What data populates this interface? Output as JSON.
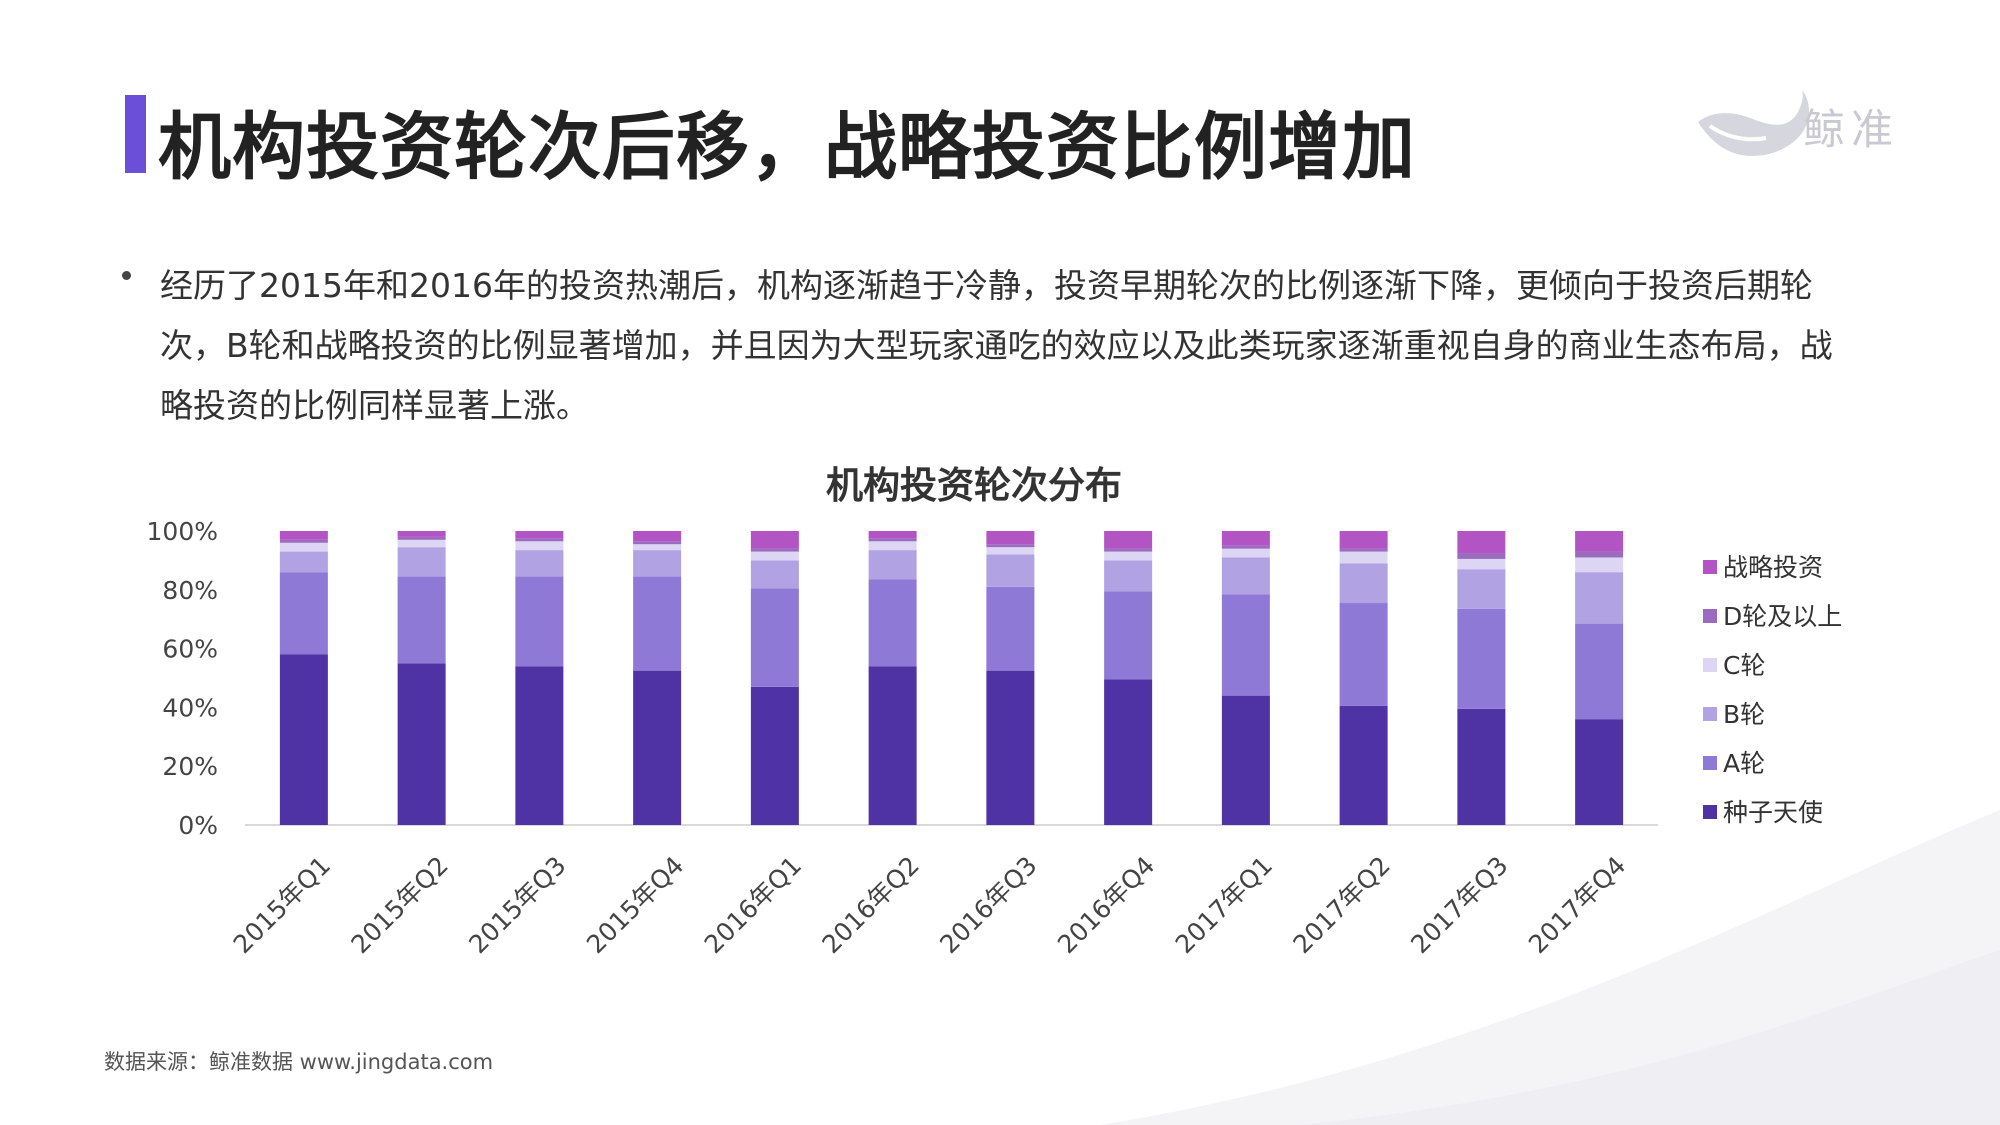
{
  "header": {
    "title": "机构投资轮次后移，战略投资比例增加",
    "logo_text": "鲸准"
  },
  "summary": {
    "text": "经历了2015年和2016年的投资热潮后，机构逐渐趋于冷静，投资早期轮次的比例逐渐下降，更倾向于投资后期轮次，B轮和战略投资的比例显著增加，并且因为大型玩家通吃的效应以及此类玩家逐渐重视自身的商业生态布局，战略投资的比例同样显著上涨。"
  },
  "footer": {
    "source": "数据来源：鲸准数据 www.jingdata.com"
  },
  "colors": {
    "accent": "#6b4fd8",
    "series": [
      "#4f33a4",
      "#8f79d6",
      "#b1a3e3",
      "#dcd6f4",
      "#9a6bbf",
      "#b254c4"
    ]
  },
  "chart_data": {
    "type": "bar",
    "stacked": true,
    "percent": true,
    "title": "机构投资轮次分布",
    "xlabel": "",
    "ylabel": "",
    "ylim": [
      0,
      100
    ],
    "yticks": [
      "0%",
      "20%",
      "40%",
      "60%",
      "80%",
      "100%"
    ],
    "grid": false,
    "legend_position": "right",
    "categories": [
      "2015年Q1",
      "2015年Q2",
      "2015年Q3",
      "2015年Q4",
      "2016年Q1",
      "2016年Q2",
      "2016年Q3",
      "2016年Q4",
      "2017年Q1",
      "2017年Q2",
      "2017年Q3",
      "2017年Q4"
    ],
    "series": [
      {
        "name": "种子天使",
        "values": [
          58,
          55,
          54,
          52.5,
          47,
          54,
          52.5,
          49.5,
          44,
          40.5,
          39.5,
          36
        ]
      },
      {
        "name": "A轮",
        "values": [
          28,
          29.5,
          30.5,
          32,
          33.5,
          29.5,
          28.5,
          30,
          34.5,
          35,
          34,
          32.5
        ]
      },
      {
        "name": "B轮",
        "values": [
          7,
          10,
          9,
          9,
          9.5,
          10,
          11,
          10.5,
          12.5,
          13.5,
          13.5,
          17.5
        ]
      },
      {
        "name": "C轮",
        "values": [
          3,
          2.5,
          3,
          2,
          3,
          3,
          2.5,
          3,
          3,
          4,
          3.5,
          5
        ]
      },
      {
        "name": "D轮及以上",
        "values": [
          1,
          1,
          1,
          1,
          1,
          1,
          1,
          1,
          1,
          1,
          2,
          2
        ]
      },
      {
        "name": "战略投资",
        "values": [
          3,
          2,
          2.5,
          3.5,
          6,
          2.5,
          4.5,
          6,
          5,
          6,
          7.5,
          7
        ]
      }
    ]
  }
}
